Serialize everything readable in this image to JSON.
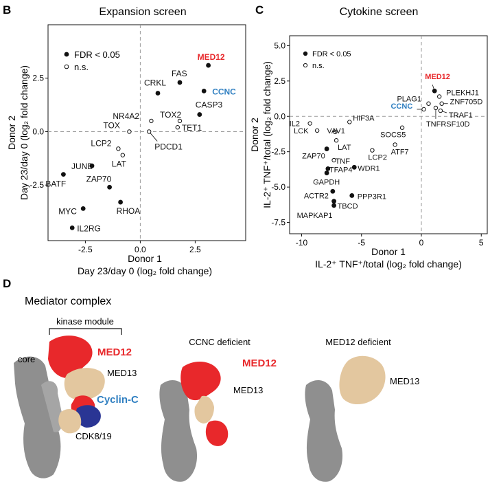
{
  "colors": {
    "red": "#e8282b",
    "blue": "#2f7fc1",
    "black": "#111111",
    "gray": "#8f8f8f",
    "tan": "#e3c79f",
    "navy": "#2a3594"
  },
  "panel_letters": {
    "b": "B",
    "c": "C",
    "d": "D"
  },
  "chart_data": [
    {
      "type": "scatter",
      "title": "Expansion screen",
      "xlabel": "Donor 1",
      "xlabel2": "Day 23/day 0 (log₂ fold change)",
      "ylabel": "Donor 2",
      "ylabel2": "Day 23/day 0 (log₂ fold change)",
      "xlim": [
        -4.2,
        4.8
      ],
      "ylim": [
        -5.1,
        5.0
      ],
      "xticks": [
        -2.5,
        0.0,
        2.5
      ],
      "yticks": [
        -2.5,
        0.0,
        2.5
      ],
      "xtick_labels": [
        "-2.5",
        "0.0",
        "2.5"
      ],
      "ytick_labels": [
        "-2.5",
        "0.0",
        "2.5"
      ],
      "legend": {
        "position": "top-left",
        "entries": [
          {
            "label": "FDR < 0.05",
            "marker": "filled"
          },
          {
            "label": "n.s.",
            "marker": "open"
          }
        ]
      },
      "points": [
        {
          "label": "MED12",
          "x": 3.1,
          "y": 3.1,
          "sig": true,
          "highlight": "red"
        },
        {
          "label": "CCNC",
          "x": 2.9,
          "y": 1.9,
          "sig": true,
          "highlight": "blue"
        },
        {
          "label": "FAS",
          "x": 1.8,
          "y": 2.3,
          "sig": true
        },
        {
          "label": "CRKL",
          "x": 0.8,
          "y": 1.8,
          "sig": true
        },
        {
          "label": "CASP3",
          "x": 2.7,
          "y": 0.8,
          "sig": true
        },
        {
          "label": "TOX2",
          "x": 1.8,
          "y": 0.5,
          "sig": false
        },
        {
          "label": "TET1",
          "x": 1.7,
          "y": 0.2,
          "sig": false
        },
        {
          "label": "NR4A2",
          "x": 0.5,
          "y": 0.5,
          "sig": false
        },
        {
          "label": "TOX",
          "x": -0.5,
          "y": 0.0,
          "sig": false
        },
        {
          "label": "PDCD1",
          "x": 0.4,
          "y": 0.0,
          "sig": false
        },
        {
          "label": "LCP2",
          "x": -1.0,
          "y": -0.8,
          "sig": false
        },
        {
          "label": "LAT",
          "x": -0.8,
          "y": -1.1,
          "sig": false
        },
        {
          "label": "JUNB",
          "x": -2.2,
          "y": -1.6,
          "sig": true
        },
        {
          "label": "BATF",
          "x": -3.5,
          "y": -2.0,
          "sig": true
        },
        {
          "label": "ZAP70",
          "x": -1.4,
          "y": -2.6,
          "sig": true
        },
        {
          "label": "RHOA",
          "x": -0.9,
          "y": -3.3,
          "sig": true
        },
        {
          "label": "MYC",
          "x": -2.6,
          "y": -3.6,
          "sig": true
        },
        {
          "label": "IL2RG",
          "x": -3.1,
          "y": -4.5,
          "sig": true
        }
      ]
    },
    {
      "type": "scatter",
      "title": "Cytokine screen",
      "xlabel": "Donor 1",
      "xlabel2": "IL-2⁺ TNF⁺/total (log₂ fold change)",
      "ylabel": "Donor 2",
      "ylabel2": "IL-2⁺ TNF⁺/total (log₂ fold change)",
      "xlim": [
        -11,
        5.5
      ],
      "ylim": [
        -8.3,
        5.7
      ],
      "xticks": [
        -10,
        -5,
        0,
        5
      ],
      "yticks": [
        5.0,
        2.5,
        0.0,
        -2.5,
        -5.0,
        -7.5
      ],
      "xtick_labels": [
        "-10",
        "-5",
        "0",
        "5"
      ],
      "ytick_labels": [
        "5.0",
        "2.5",
        "0.0",
        "-2.5",
        "-5.0",
        "-7.5"
      ],
      "legend": {
        "position": "top-left",
        "entries": [
          {
            "label": "FDR < 0.05",
            "marker": "filled"
          },
          {
            "label": "n.s.",
            "marker": "open"
          }
        ]
      },
      "points": [
        {
          "label": "MED12",
          "x": 1.1,
          "y": 1.8,
          "sig": true,
          "highlight": "red"
        },
        {
          "label": "PLAG1",
          "x": 0.6,
          "y": 0.9,
          "sig": false
        },
        {
          "label": "PLEKHJ1",
          "x": 1.5,
          "y": 1.4,
          "sig": false
        },
        {
          "label": "CCNC",
          "x": 0.2,
          "y": 0.5,
          "sig": false,
          "highlight": "blue"
        },
        {
          "label": "ZNF705D",
          "x": 1.7,
          "y": 0.9,
          "sig": false
        },
        {
          "label": "TRAF1",
          "x": 1.6,
          "y": 0.4,
          "sig": false
        },
        {
          "label": "TNFRSF10D",
          "x": 1.2,
          "y": 0.6,
          "sig": false
        },
        {
          "label": "IL2",
          "x": -9.3,
          "y": -0.5,
          "sig": false
        },
        {
          "label": "HIF3A",
          "x": -6.0,
          "y": -0.4,
          "sig": false
        },
        {
          "label": "LCK",
          "x": -8.7,
          "y": -1.0,
          "sig": false
        },
        {
          "label": "VAV1",
          "x": -7.2,
          "y": -1.1,
          "sig": false
        },
        {
          "label": "SOCS5",
          "x": -1.6,
          "y": -0.8,
          "sig": false
        },
        {
          "label": "LAT",
          "x": -7.1,
          "y": -1.7,
          "sig": false
        },
        {
          "label": "ATF7",
          "x": -2.2,
          "y": -2.0,
          "sig": false
        },
        {
          "label": "LCP2",
          "x": -4.1,
          "y": -2.4,
          "sig": false
        },
        {
          "label": "ZAP70",
          "x": -7.9,
          "y": -2.3,
          "sig": true
        },
        {
          "label": "TNF",
          "x": -7.3,
          "y": -3.1,
          "sig": false
        },
        {
          "label": "TFAP4",
          "x": -7.8,
          "y": -3.7,
          "sig": true
        },
        {
          "label": "WDR1",
          "x": -5.6,
          "y": -3.6,
          "sig": true
        },
        {
          "label": "GAPDH",
          "x": -7.9,
          "y": -4.0,
          "sig": true
        },
        {
          "label": "ACTR2",
          "x": -7.4,
          "y": -5.3,
          "sig": true
        },
        {
          "label": "PPP3R1",
          "x": -5.8,
          "y": -5.6,
          "sig": true
        },
        {
          "label": "TBCD",
          "x": -7.3,
          "y": -6.0,
          "sig": true
        },
        {
          "label": "MAPKAP1",
          "x": -7.3,
          "y": -6.3,
          "sig": true
        }
      ]
    }
  ],
  "panel_d": {
    "title": "Mediator complex",
    "kinase_module": "kinase module",
    "core": "core",
    "med12": "MED12",
    "med13": "MED13",
    "cyclin_c": "Cyclin-C",
    "cdk": "CDK8/19",
    "ccnc_deficient": "CCNC deficient",
    "med12_deficient": "MED12 deficient"
  }
}
